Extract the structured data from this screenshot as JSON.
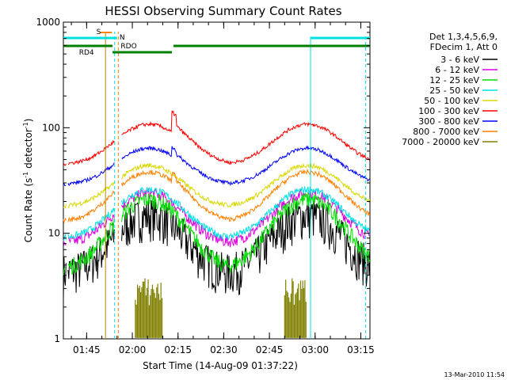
{
  "chart_data": {
    "type": "line",
    "title": "HESSI Observing Summary Count Rates",
    "xlabel": "Start Time (14-Aug-09 01:37:22)",
    "ylabel": "Count Rate (s",
    "ylabel_sup1": "-1",
    "ylabel_mid": " detector",
    "ylabel_sup2": "-1",
    "ylabel_end": ")",
    "y_scale": "log",
    "ylim": [
      1,
      1000
    ],
    "y_ticks": [
      {
        "value": 1,
        "label": "1"
      },
      {
        "value": 10,
        "label": "10"
      },
      {
        "value": 100,
        "label": "100"
      },
      {
        "value": 1000,
        "label": "1000"
      }
    ],
    "x_range_minutes": [
      97.37,
      198.0
    ],
    "x_ticks": [
      {
        "minutes": 105,
        "label": "01:45"
      },
      {
        "minutes": 120,
        "label": "02:00"
      },
      {
        "minutes": 135,
        "label": "02:15"
      },
      {
        "minutes": 150,
        "label": "02:30"
      },
      {
        "minutes": 165,
        "label": "02:45"
      },
      {
        "minutes": 180,
        "label": "03:00"
      },
      {
        "minutes": 195,
        "label": "03:15"
      }
    ],
    "grid": false,
    "legend_placement": "right",
    "legend_header": [
      "Det 1,3,4,5,6,9,",
      "FDecim 1, Att 0"
    ],
    "series": [
      {
        "name": "3 - 6 keV",
        "color": "#000000",
        "base": 4.2,
        "amp": 15,
        "noise": 0.45,
        "after_jump": 1.0
      },
      {
        "name": "6 - 12 keV",
        "color": "#e000e0",
        "base": 8.0,
        "amp": 24,
        "noise": 0.12,
        "after_jump": 1.0
      },
      {
        "name": "12 - 25 keV",
        "color": "#00e000",
        "base": 4.6,
        "amp": 21,
        "noise": 0.18,
        "after_jump": 1.0
      },
      {
        "name": "25 - 50 keV",
        "color": "#00e0e0",
        "base": 9.0,
        "amp": 26,
        "noise": 0.08,
        "after_jump": 1.0
      },
      {
        "name": "50 - 100 keV",
        "color": "#d8d800",
        "base": 18,
        "amp": 44,
        "noise": 0.05,
        "after_jump": 1.0
      },
      {
        "name": "100 - 300 keV",
        "color": "#ff0000",
        "base": 45,
        "amp": 108,
        "noise": 0.04,
        "after_jump": 1.25
      },
      {
        "name": "300 - 800 keV",
        "color": "#0000ff",
        "base": 29,
        "amp": 64,
        "noise": 0.04,
        "after_jump": 1.1
      },
      {
        "name": "800 - 7000 keV",
        "color": "#ff8000",
        "base": 13,
        "amp": 38,
        "noise": 0.05,
        "after_jump": 1.1
      },
      {
        "name": "7000 - 20000 keV",
        "color": "#808000",
        "base": 1.0,
        "amp": 1.0,
        "noise": 0.0,
        "after_jump": 1.0
      }
    ],
    "data_gaps_minutes": [
      [
        98.3,
        98.9
      ],
      [
        114.3,
        116.4
      ]
    ],
    "orbit_peaks_minutes": [
      125.5,
      177.5
    ],
    "orbit_width_minutes": 13,
    "saa_bursts_minutes": [
      [
        121,
        130
      ],
      [
        170,
        177
      ]
    ],
    "annotations": {
      "S": "S",
      "N": "N",
      "RDO": "RDO",
      "RD4": "RD4"
    },
    "attenuator_markers": {
      "S_label": "S",
      "N_label": "N",
      "RDO_label": "RDO",
      "RD4_label": "RD4"
    },
    "cyan_intervals_minutes": [
      [
        97.37,
        115.0
      ],
      [
        178.5,
        198.0
      ]
    ],
    "green_bars_minutes": [
      [
        97.37,
        113.5
      ],
      [
        113.5,
        133.0
      ],
      [
        133.5,
        198.0
      ]
    ],
    "vertical_lines_minutes": {
      "solid_gold": 111.2,
      "dashed_orange": 115.4,
      "dashed_cyan_1": 114.2,
      "solid_cyan": 178.5,
      "dashed_cyan_2": 196.6
    }
  },
  "timestamp": "13-Mar-2010 11:54"
}
